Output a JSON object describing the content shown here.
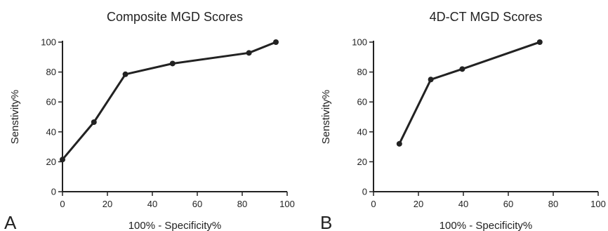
{
  "chart_data": [
    {
      "type": "line",
      "panel_label": "A",
      "title": "Composite MGD Scores",
      "xlabel": "100% - Specificity%",
      "ylabel": "Senstivity%",
      "xlim": [
        0,
        100
      ],
      "ylim": [
        0,
        100
      ],
      "xticks": [
        0,
        20,
        40,
        60,
        80,
        100
      ],
      "yticks": [
        0,
        20,
        40,
        60,
        80,
        100
      ],
      "grid": false,
      "series": [
        {
          "x": [
            0,
            14,
            28,
            49,
            83,
            95
          ],
          "y": [
            21.5,
            46.5,
            78.5,
            85.7,
            92.8,
            100
          ]
        }
      ]
    },
    {
      "type": "line",
      "panel_label": "B",
      "title": "4D-CT MGD Scores",
      "xlabel": "100% - Specificity%",
      "ylabel": "Senstivity%",
      "xlim": [
        0,
        100
      ],
      "ylim": [
        0,
        100
      ],
      "xticks": [
        0,
        20,
        40,
        60,
        80,
        100
      ],
      "yticks": [
        0,
        20,
        40,
        60,
        80,
        100
      ],
      "grid": false,
      "series": [
        {
          "x": [
            11.5,
            25.5,
            39.5,
            74
          ],
          "y": [
            32,
            75,
            82,
            100
          ]
        }
      ]
    }
  ]
}
